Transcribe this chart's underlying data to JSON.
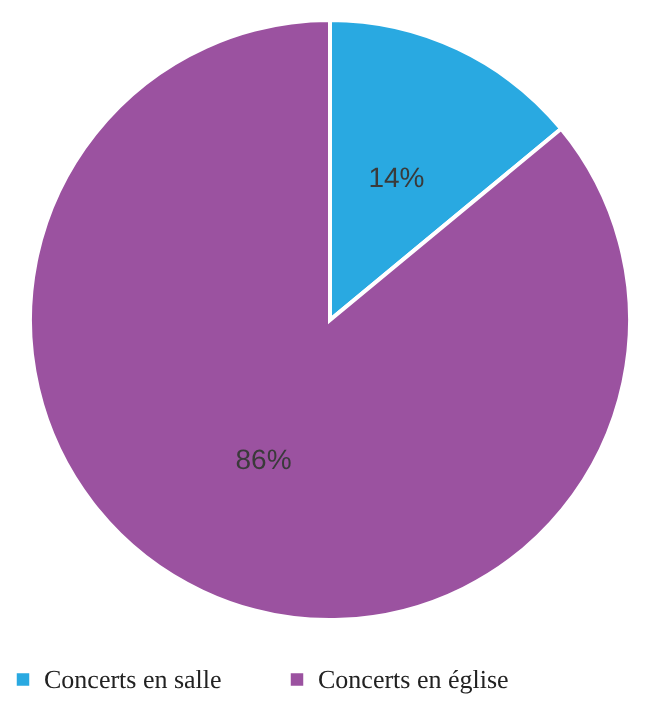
{
  "chart_data": {
    "type": "pie",
    "categories": [
      "Concerts en salle",
      "Concerts en église"
    ],
    "values": [
      14,
      86
    ],
    "colors": [
      "#29a9e1",
      "#9b52a0"
    ],
    "value_labels": [
      "14%",
      "86%"
    ],
    "legend": "bottom"
  }
}
